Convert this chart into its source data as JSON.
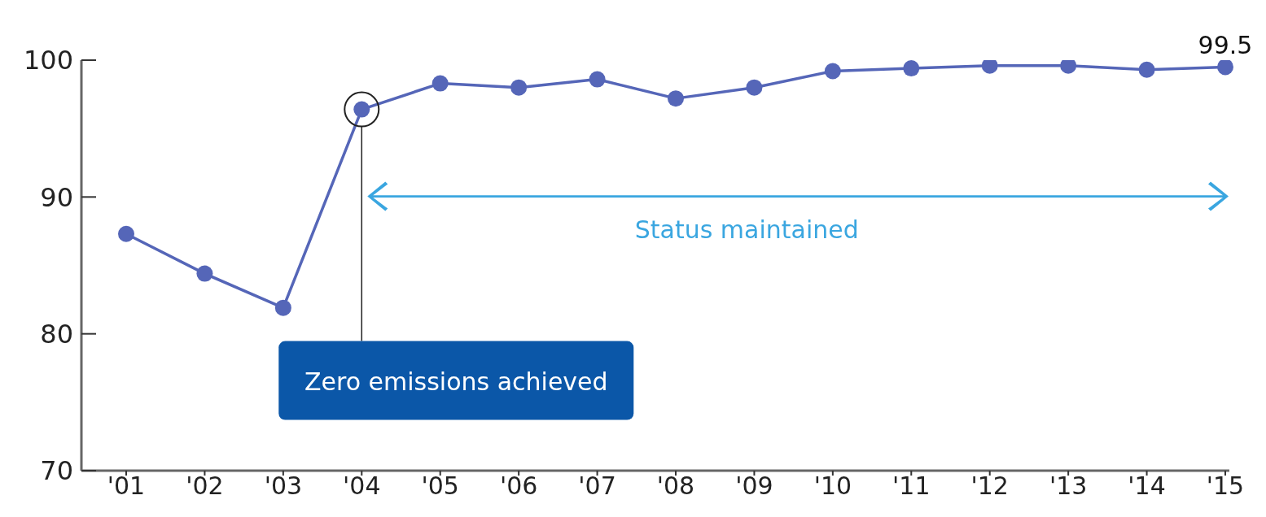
{
  "chart_data": {
    "type": "line",
    "categories": [
      "'01",
      "'02",
      "'03",
      "'04",
      "'05",
      "'06",
      "'07",
      "'08",
      "'09",
      "'10",
      "'11",
      "'12",
      "'13",
      "'14",
      "'15"
    ],
    "series": [
      {
        "color": "#5566b8",
        "values": [
          87.3,
          84.4,
          81.9,
          96.4,
          98.3,
          98.0,
          98.6,
          97.2,
          98.0,
          99.2,
          99.4,
          99.6,
          99.6,
          99.3,
          99.5
        ],
        "value_labels": [
          null,
          null,
          null,
          null,
          null,
          null,
          null,
          null,
          null,
          null,
          null,
          null,
          null,
          null,
          "99.5"
        ]
      }
    ],
    "ylim": [
      70,
      100
    ],
    "yticks": [
      70,
      80,
      90,
      100
    ],
    "grid": false,
    "legend": false,
    "marker": "circle",
    "line_style": "solid",
    "annotations": [
      "Zero emissions achieved",
      "Status maintained"
    ]
  }
}
